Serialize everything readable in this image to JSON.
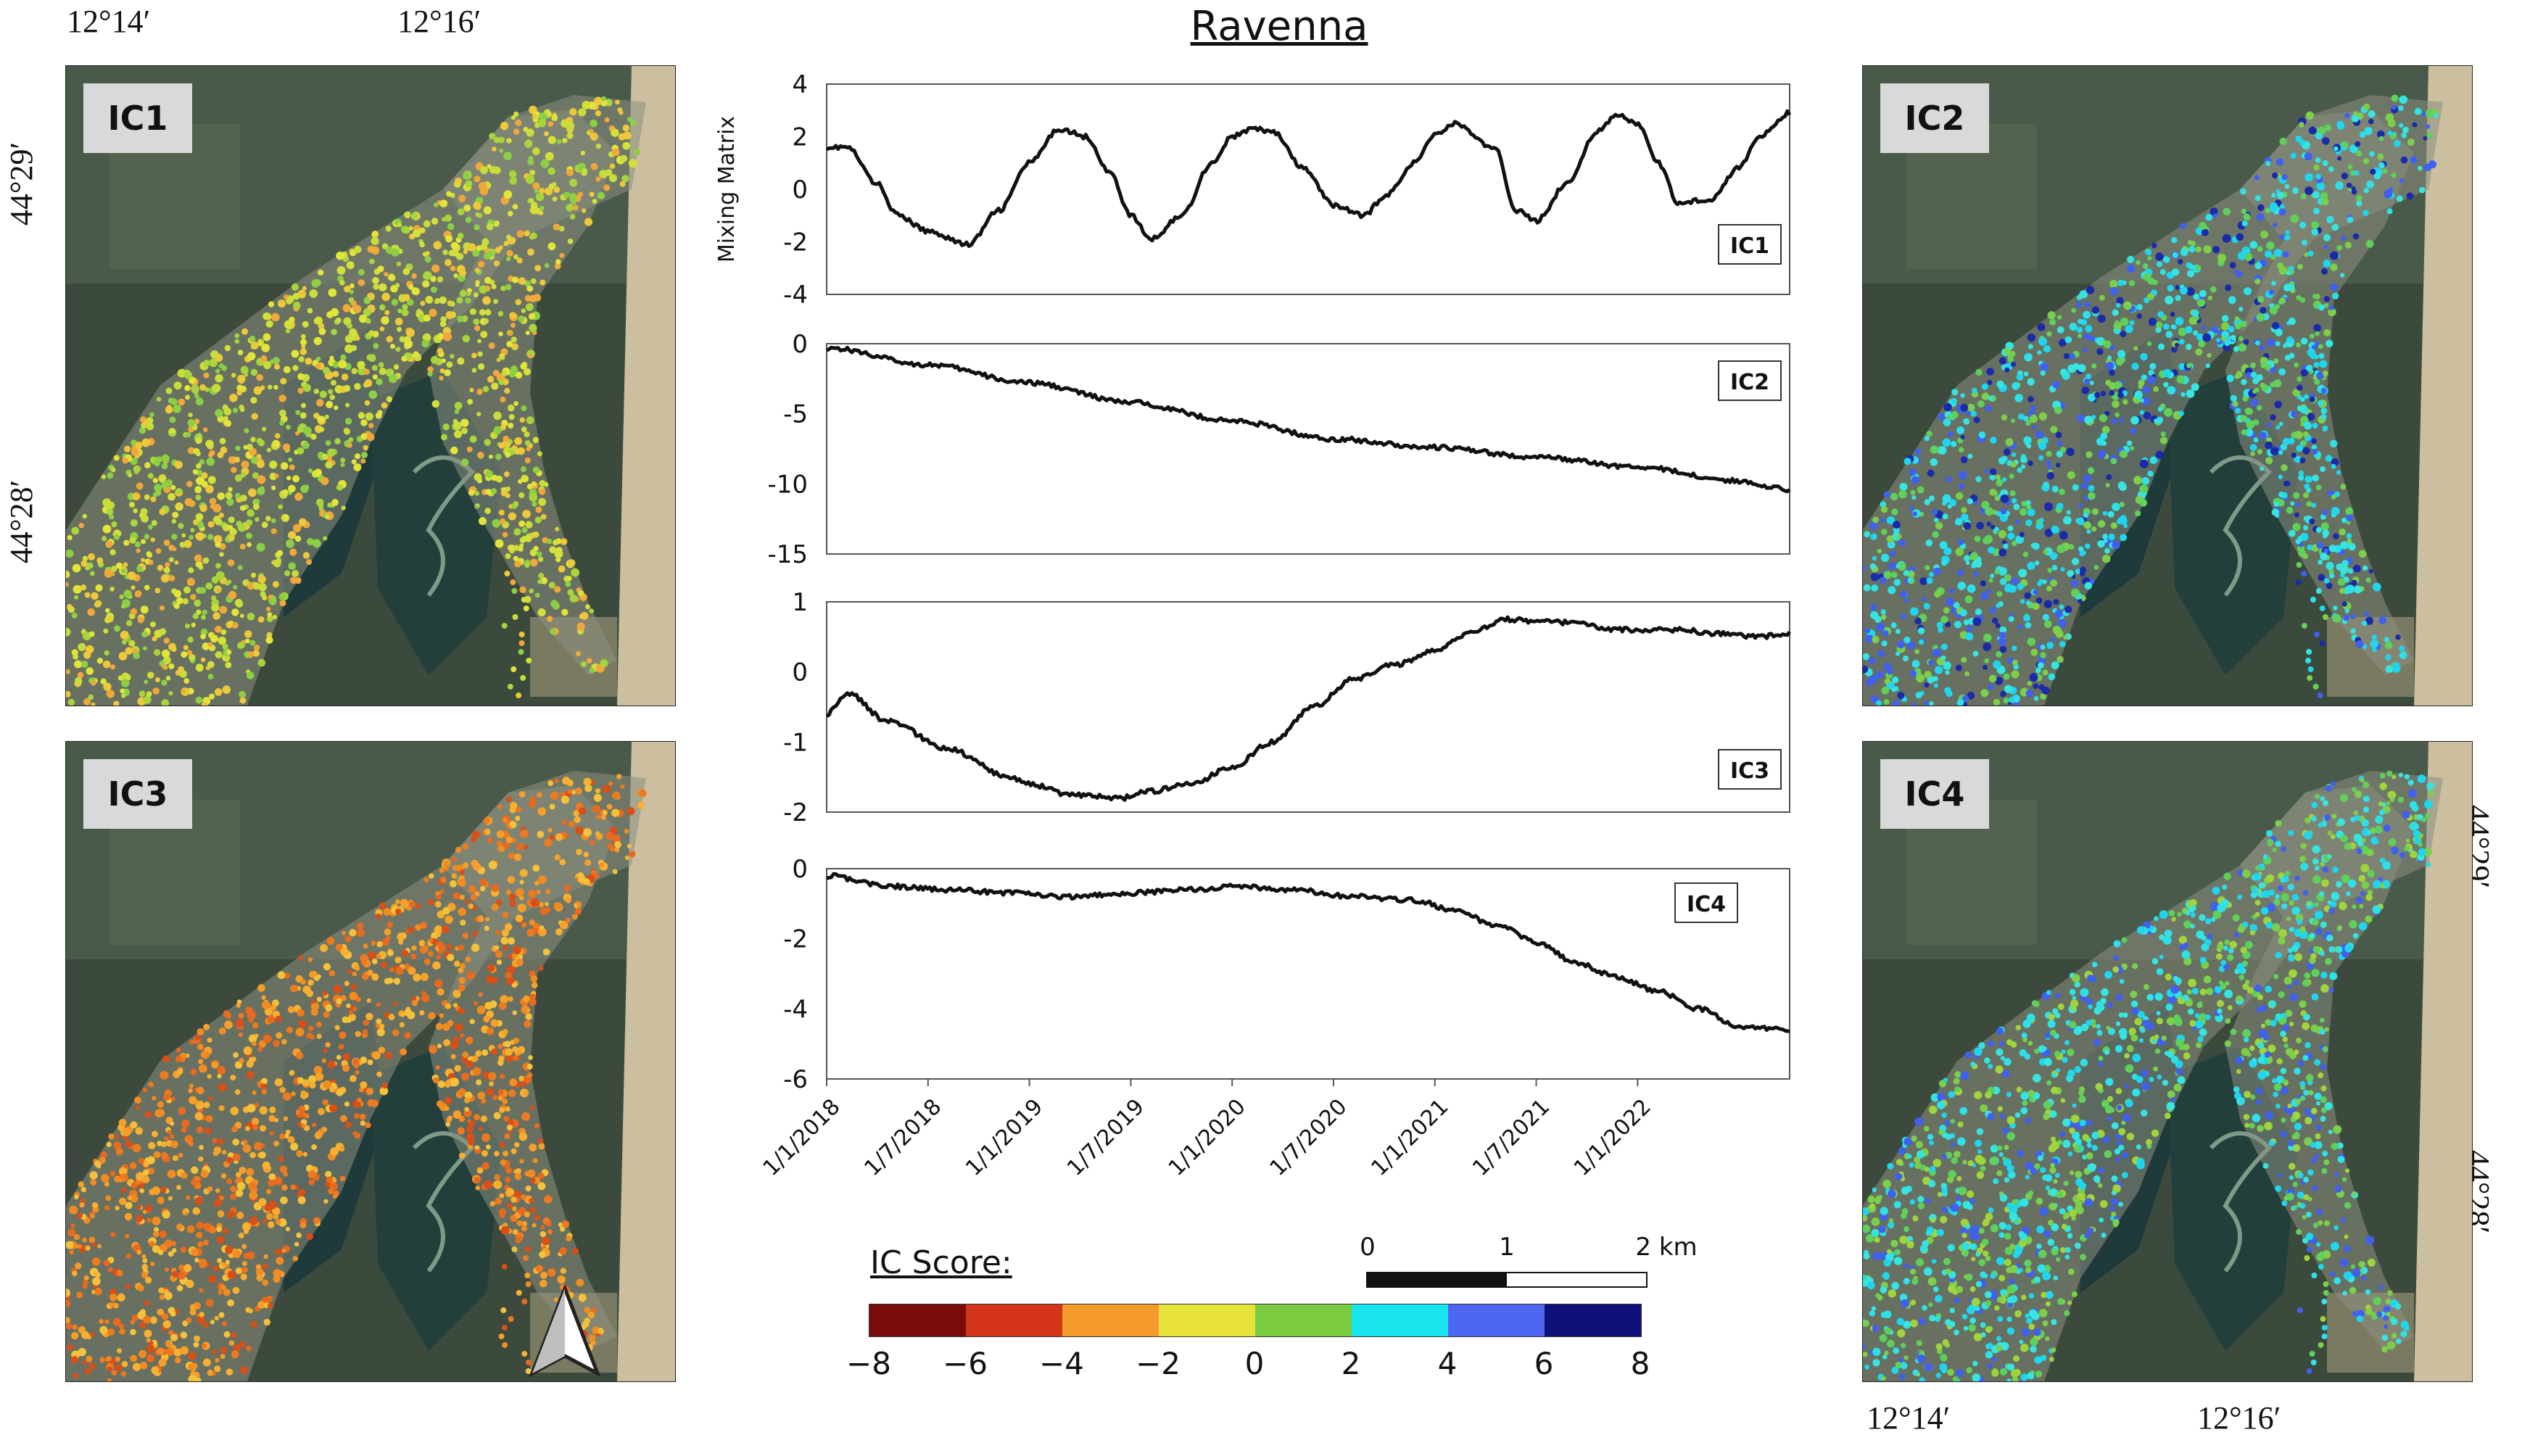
{
  "title": "Ravenna",
  "maps": {
    "ic1": {
      "label": "IC1",
      "palette": [
        "#d4e03a",
        "#e3e43a",
        "#c8dc3c",
        "#a8d43c",
        "#ecc83a",
        "#f0a83a",
        "#8ccf44"
      ]
    },
    "ic2": {
      "label": "IC2",
      "palette": [
        "#2fe0e8",
        "#1fd6ee",
        "#7ccf4a",
        "#5fd05a",
        "#4060f0",
        "#1a2aa8",
        "#36e4e0"
      ]
    },
    "ic3": {
      "label": "IC3",
      "palette": [
        "#f5a02a",
        "#f08c22",
        "#f7b030",
        "#e86a1e",
        "#f4c23a",
        "#ee7a20",
        "#d94f18"
      ]
    },
    "ic4": {
      "label": "IC4",
      "palette": [
        "#2fe0e8",
        "#7ccf4a",
        "#5fd05a",
        "#36e4e0",
        "#4060f0",
        "#a0d43c",
        "#1fd6ee"
      ]
    }
  },
  "coords": {
    "top_lon_1": "12°14′",
    "top_lon_2": "12°16′",
    "left_lat_1": "44°29′",
    "left_lat_2": "44°28′",
    "right_lat_1": "44°29′",
    "right_lat_2": "44°28′",
    "bottom_lon_1": "12°14′",
    "bottom_lon_2": "12°16′"
  },
  "chart_data": {
    "type": "line",
    "title": "Ravenna",
    "ylabel": "Mixing Matrix",
    "x_dates": [
      "1/1/2018",
      "1/7/2018",
      "1/1/2019",
      "1/7/2019",
      "1/1/2020",
      "1/7/2020",
      "1/1/2021",
      "1/7/2021",
      "1/1/2022"
    ],
    "x_range": [
      2018.0,
      2022.75
    ],
    "panels": [
      {
        "name": "IC1",
        "ylim": [
          -4,
          4
        ],
        "yticks": [
          "4",
          "2",
          "0",
          "-2",
          "-4"
        ],
        "x": [
          2018.0,
          2018.1,
          2018.25,
          2018.35,
          2018.5,
          2018.7,
          2018.85,
          2019.0,
          2019.15,
          2019.28,
          2019.4,
          2019.5,
          2019.6,
          2019.75,
          2019.9,
          2020.0,
          2020.1,
          2020.2,
          2020.35,
          2020.5,
          2020.65,
          2020.75,
          2020.9,
          2021.0,
          2021.1,
          2021.3,
          2021.4,
          2021.5,
          2021.65,
          2021.8,
          2021.9,
          2022.0,
          2022.1,
          2022.2,
          2022.35,
          2022.5,
          2022.6,
          2022.75
        ],
        "y": [
          1.6,
          1.6,
          0.2,
          -1.0,
          -1.6,
          -2.1,
          -0.8,
          1.0,
          2.3,
          2.0,
          0.6,
          -1.0,
          -1.9,
          -1.0,
          1.0,
          2.0,
          2.3,
          2.2,
          0.8,
          -0.6,
          -1.0,
          -0.3,
          1.0,
          2.1,
          2.5,
          1.5,
          -0.8,
          -1.2,
          0.2,
          2.2,
          2.8,
          2.5,
          1.0,
          -0.5,
          -0.4,
          0.8,
          2.0,
          2.9
        ]
      },
      {
        "name": "IC2",
        "ylim": [
          -15,
          0
        ],
        "yticks": [
          "0",
          "-5",
          "-10",
          "-15"
        ],
        "x": [
          2018.0,
          2018.5,
          2019.0,
          2019.5,
          2020.0,
          2020.5,
          2021.0,
          2021.5,
          2022.0,
          2022.5,
          2022.75
        ],
        "y": [
          -0.3,
          -1.5,
          -2.8,
          -4.2,
          -5.5,
          -6.8,
          -7.4,
          -8.1,
          -8.8,
          -9.8,
          -10.4
        ]
      },
      {
        "name": "IC3",
        "ylim": [
          -2,
          1
        ],
        "yticks": [
          "1",
          "0",
          "-1",
          "-2"
        ],
        "x": [
          2018.0,
          2018.1,
          2018.3,
          2018.6,
          2018.9,
          2019.0,
          2019.2,
          2019.45,
          2019.6,
          2019.8,
          2020.0,
          2020.2,
          2020.4,
          2020.6,
          2020.8,
          2021.0,
          2021.2,
          2021.35,
          2021.5,
          2021.7,
          2021.9,
          2022.0,
          2022.2,
          2022.4,
          2022.6,
          2022.75
        ],
        "y": [
          -0.6,
          -0.3,
          -0.7,
          -1.1,
          -1.5,
          -1.6,
          -1.75,
          -1.8,
          -1.7,
          -1.6,
          -1.35,
          -1.0,
          -0.5,
          -0.1,
          0.1,
          0.3,
          0.6,
          0.75,
          0.72,
          0.7,
          0.6,
          0.6,
          0.6,
          0.55,
          0.5,
          0.55
        ]
      },
      {
        "name": "IC4",
        "ylim": [
          -6,
          0
        ],
        "yticks": [
          "0",
          "-2",
          "-4",
          "-6"
        ],
        "x": [
          2018.0,
          2018.3,
          2018.6,
          2018.9,
          2019.2,
          2019.5,
          2019.8,
          2020.0,
          2020.3,
          2020.6,
          2020.9,
          2021.1,
          2021.3,
          2021.5,
          2021.7,
          2021.9,
          2022.1,
          2022.3,
          2022.5,
          2022.75
        ],
        "y": [
          -0.2,
          -0.5,
          -0.6,
          -0.7,
          -0.8,
          -0.7,
          -0.6,
          -0.5,
          -0.6,
          -0.8,
          -0.9,
          -1.2,
          -1.6,
          -2.1,
          -2.7,
          -3.1,
          -3.5,
          -4.0,
          -4.5,
          -4.6
        ]
      }
    ]
  },
  "colorbar": {
    "title": "IC Score:",
    "ticks": [
      "−8",
      "−6",
      "−4",
      "−2",
      "0",
      "2",
      "4",
      "6",
      "8"
    ],
    "colors": [
      "#7a0c0c",
      "#d4351a",
      "#f49a2c",
      "#e8e33a",
      "#7acb40",
      "#18e4ee",
      "#4f66f0",
      "#10107a"
    ]
  },
  "scalebar": {
    "labels": [
      "0",
      "1",
      "2 km"
    ]
  }
}
